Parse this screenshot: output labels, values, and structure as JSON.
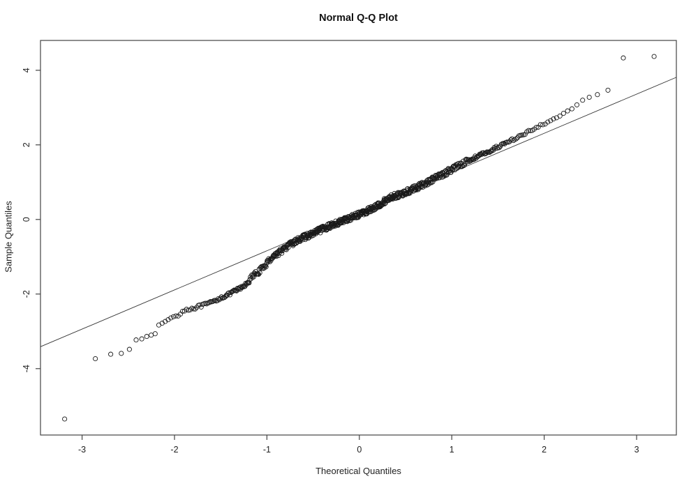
{
  "chart_data": {
    "type": "scatter",
    "subtype": "qq-plot",
    "title": "Normal Q-Q Plot",
    "xlabel": "Theoretical Quantiles",
    "ylabel": "Sample Quantiles",
    "xlim": [
      -3.45,
      3.43
    ],
    "ylim": [
      -5.78,
      4.8
    ],
    "x_ticks": [
      -3,
      -2,
      -1,
      0,
      1,
      2,
      3
    ],
    "y_ticks": [
      -4,
      -2,
      0,
      2,
      4
    ],
    "grid": false,
    "legend": false,
    "n_points": 700,
    "reference_line": {
      "intercept": 0.21,
      "slope": 1.05
    },
    "curve_anchors": [
      [
        -3.3,
        -4.05
      ],
      [
        -2.87,
        -3.73
      ],
      [
        -2.7,
        -3.6
      ],
      [
        -2.5,
        -3.56
      ],
      [
        -2.44,
        -3.27
      ],
      [
        -2.3,
        -3.14
      ],
      [
        -2.21,
        -3.07
      ],
      [
        -2.17,
        -2.84
      ],
      [
        -2.05,
        -2.65
      ],
      [
        -1.97,
        -2.57
      ],
      [
        -1.9,
        -2.44
      ],
      [
        -1.8,
        -2.38
      ],
      [
        -1.7,
        -2.31
      ],
      [
        -1.6,
        -2.23
      ],
      [
        -1.5,
        -2.1
      ],
      [
        -1.42,
        -2.02
      ],
      [
        -1.34,
        -1.91
      ],
      [
        -1.25,
        -1.8
      ],
      [
        -1.15,
        -1.52
      ],
      [
        -1.05,
        -1.32
      ],
      [
        -0.95,
        -1.02
      ],
      [
        -0.85,
        -0.85
      ],
      [
        -0.75,
        -0.68
      ],
      [
        -0.64,
        -0.52
      ],
      [
        -0.52,
        -0.4
      ],
      [
        -0.4,
        -0.26
      ],
      [
        -0.28,
        -0.13
      ],
      [
        -0.16,
        -0.02
      ],
      [
        -0.04,
        0.1
      ],
      [
        0.08,
        0.22
      ],
      [
        0.2,
        0.37
      ],
      [
        0.34,
        0.6
      ],
      [
        0.44,
        0.66
      ],
      [
        0.55,
        0.78
      ],
      [
        0.66,
        0.9
      ],
      [
        0.78,
        1.05
      ],
      [
        0.92,
        1.23
      ],
      [
        1.05,
        1.42
      ],
      [
        1.15,
        1.54
      ],
      [
        1.25,
        1.66
      ],
      [
        1.37,
        1.79
      ],
      [
        1.48,
        1.92
      ],
      [
        1.6,
        2.07
      ],
      [
        1.72,
        2.22
      ],
      [
        1.85,
        2.38
      ],
      [
        1.97,
        2.52
      ],
      [
        2.08,
        2.65
      ],
      [
        2.2,
        2.82
      ],
      [
        2.33,
        3.02
      ],
      [
        2.45,
        3.25
      ],
      [
        2.56,
        3.35
      ],
      [
        2.7,
        3.46
      ],
      [
        3.3,
        4.42
      ]
    ],
    "outlier_overrides": [
      {
        "index": 1,
        "sample_quantile": -5.35
      },
      {
        "index": 699,
        "sample_quantile": 4.33
      },
      {
        "index": 700,
        "sample_quantile": 4.37
      }
    ],
    "style": {
      "point_color": "#1a1a1a",
      "reference_line_color": "#333333",
      "axis_color": "#444444",
      "tick_label_color": "#222222",
      "marker_radius": 3.1,
      "jitter_seed": 1234
    }
  }
}
